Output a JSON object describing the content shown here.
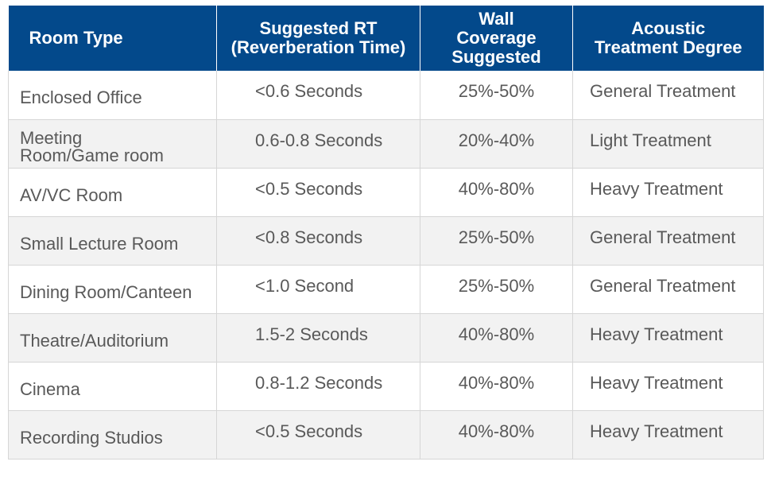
{
  "table": {
    "headers": {
      "room_type": "Room Type",
      "rt_line1": "Suggested RT",
      "rt_line2": "(Reverberation Time)",
      "wall_line1": "Wall",
      "wall_line2": "Coverage",
      "wall_line3": "Suggested",
      "acoustic_line1": "Acoustic",
      "acoustic_line2": "Treatment Degree"
    },
    "rows": [
      {
        "room_line1": "Enclosed Office",
        "room_line2": "",
        "rt": "<0.6 Seconds",
        "coverage": "25%-50%",
        "treatment": "General Treatment"
      },
      {
        "room_line1": "Meeting",
        "room_line2": "Room/Game room",
        "rt": "0.6-0.8 Seconds",
        "coverage": "20%-40%",
        "treatment": "Light Treatment"
      },
      {
        "room_line1": "AV/VC Room",
        "room_line2": "",
        "rt": "<0.5 Seconds",
        "coverage": "40%-80%",
        "treatment": "Heavy Treatment"
      },
      {
        "room_line1": "Small Lecture Room",
        "room_line2": "",
        "rt": "<0.8 Seconds",
        "coverage": "25%-50%",
        "treatment": "General Treatment"
      },
      {
        "room_line1": "Dining Room/Canteen",
        "room_line2": "",
        "rt": "<1.0 Second",
        "coverage": "25%-50%",
        "treatment": "General Treatment"
      },
      {
        "room_line1": "Theatre/Auditorium",
        "room_line2": "",
        "rt": "1.5-2 Seconds",
        "coverage": "40%-80%",
        "treatment": "Heavy Treatment"
      },
      {
        "room_line1": "Cinema",
        "room_line2": "",
        "rt": "0.8-1.2 Seconds",
        "coverage": "40%-80%",
        "treatment": "Heavy Treatment"
      },
      {
        "room_line1": "Recording Studios",
        "room_line2": "",
        "rt": "<0.5 Seconds",
        "coverage": "40%-80%",
        "treatment": "Heavy Treatment"
      }
    ]
  },
  "colors": {
    "header_bg": "#03498b",
    "header_text": "#ffffff",
    "body_text": "#595959",
    "row_alt_bg": "#f2f2f2",
    "border": "#d6d6d6"
  }
}
